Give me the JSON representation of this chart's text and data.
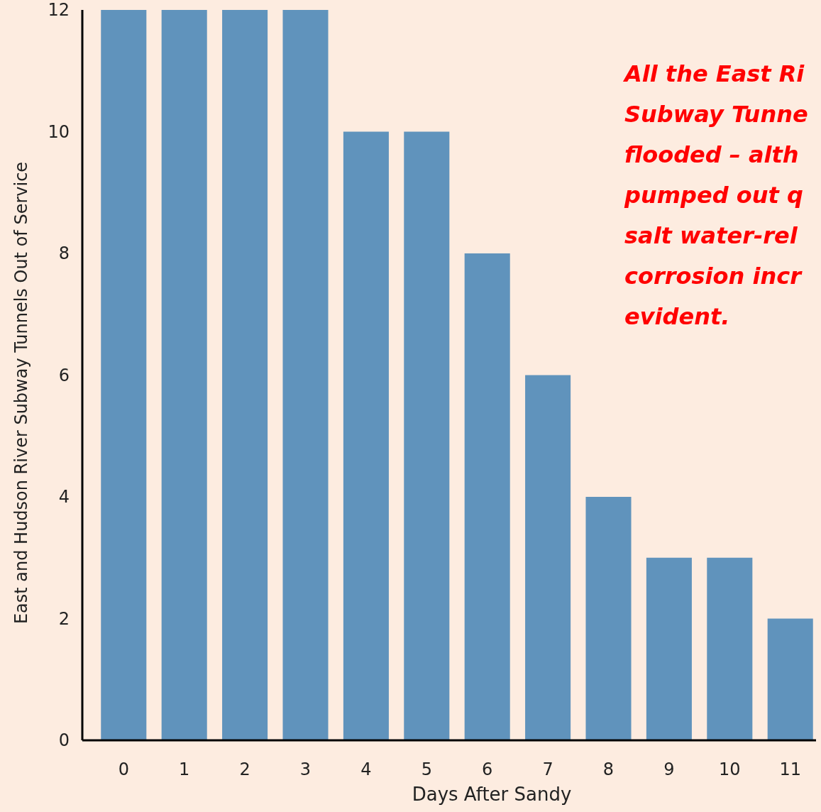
{
  "chart_data": {
    "type": "bar",
    "xlabel": "Days  After Sandy",
    "ylabel": "East and Hudson River Subway Tunnels Out of Service",
    "categories": [
      "0",
      "1",
      "2",
      "3",
      "4",
      "5",
      "6",
      "7",
      "8",
      "9",
      "10",
      "11"
    ],
    "values": [
      12,
      12,
      12,
      12,
      10,
      10,
      8,
      6,
      4,
      3,
      3,
      2
    ],
    "color": "#6093bc",
    "ylim": [
      0,
      12
    ],
    "yticks": [
      0,
      2,
      4,
      6,
      8,
      10,
      12
    ],
    "grid": false,
    "annotations": [
      "All the East Ri\nSubway Tunne\nflooded – alth\npumped out q\nsalt water-rel\ncorrosion incr\nevident."
    ]
  }
}
